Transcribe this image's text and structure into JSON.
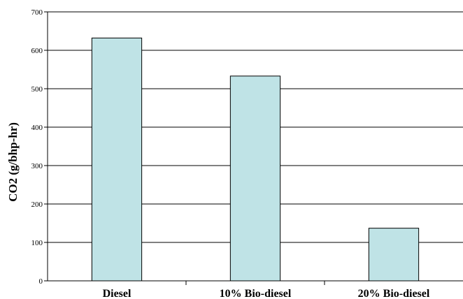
{
  "chart_data": {
    "type": "bar",
    "title": "",
    "xlabel": "",
    "ylabel": "CO2 (g/bhp-hr)",
    "categories": [
      "Diesel",
      "10% Bio-diesel",
      "20% Bio-diesel"
    ],
    "values": [
      632,
      533,
      137
    ],
    "ylim": [
      0,
      700
    ],
    "yticks": [
      "0",
      "100",
      "200",
      "300",
      "400",
      "500",
      "600",
      "700"
    ],
    "grid": true,
    "legend": "none",
    "colors": {
      "bar_fill": "#bfe3e6",
      "bar_stroke": "#000000",
      "grid": "#000000",
      "axis": "#000000"
    }
  }
}
